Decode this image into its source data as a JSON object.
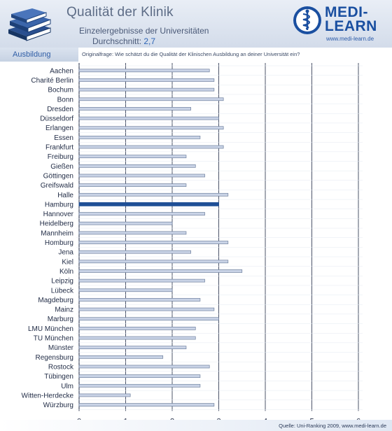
{
  "header": {
    "title": "Qualität der Klinik",
    "subtitle": "Einzelergebnisse der Universitäten",
    "average_label": "Durchschnitt:",
    "average_value": "2,7"
  },
  "logo": {
    "line1": "MEDI-",
    "line2": "LEARN",
    "url": "www.medi-learn.de",
    "icon": "caduceus-icon"
  },
  "section": {
    "tab_label": "Ausbildung",
    "question": "Originalfrage: Wie schätzt du die Qualität der Klinischen Ausbildung an deiner Universität ein?"
  },
  "footer": {
    "source": "Quelle: Uni-Ranking 2009, www.medi-learn.de"
  },
  "colors": {
    "bar": "#c9d3e6",
    "bar_edge": "#6f809e",
    "highlight": "#1e4f96",
    "grid": "#1f2a44"
  },
  "chart_data": {
    "type": "bar",
    "orientation": "horizontal",
    "categories": [
      "Aachen",
      "Charité Berlin",
      "Bochum",
      "Bonn",
      "Dresden",
      "Düsseldorf",
      "Erlangen",
      "Essen",
      "Frankfurt",
      "Freiburg",
      "Gießen",
      "Göttingen",
      "Greifswald",
      "Halle",
      "Hamburg",
      "Hannover",
      "Heidelberg",
      "Mannheim",
      "Homburg",
      "Jena",
      "Kiel",
      "Köln",
      "Leipzig",
      "Lübeck",
      "Magdeburg",
      "Mainz",
      "Marburg",
      "LMU München",
      "TU München",
      "Münster",
      "Regensburg",
      "Rostock",
      "Tübingen",
      "Ulm",
      "Witten-Herdecke",
      "Würzburg"
    ],
    "values": [
      2.8,
      2.9,
      2.9,
      3.1,
      2.4,
      3.0,
      3.1,
      2.6,
      3.1,
      2.3,
      2.5,
      2.7,
      2.3,
      3.2,
      3.0,
      2.7,
      2.0,
      2.3,
      3.2,
      2.4,
      3.2,
      3.5,
      2.7,
      2.0,
      2.6,
      2.9,
      3.0,
      2.5,
      2.5,
      2.3,
      1.8,
      2.8,
      2.6,
      2.6,
      1.1,
      2.9
    ],
    "highlight": "Hamburg",
    "xlim": [
      0,
      6
    ],
    "xticks": [
      "0",
      "1",
      "2",
      "3",
      "4",
      "5",
      "6"
    ],
    "grid": true
  }
}
